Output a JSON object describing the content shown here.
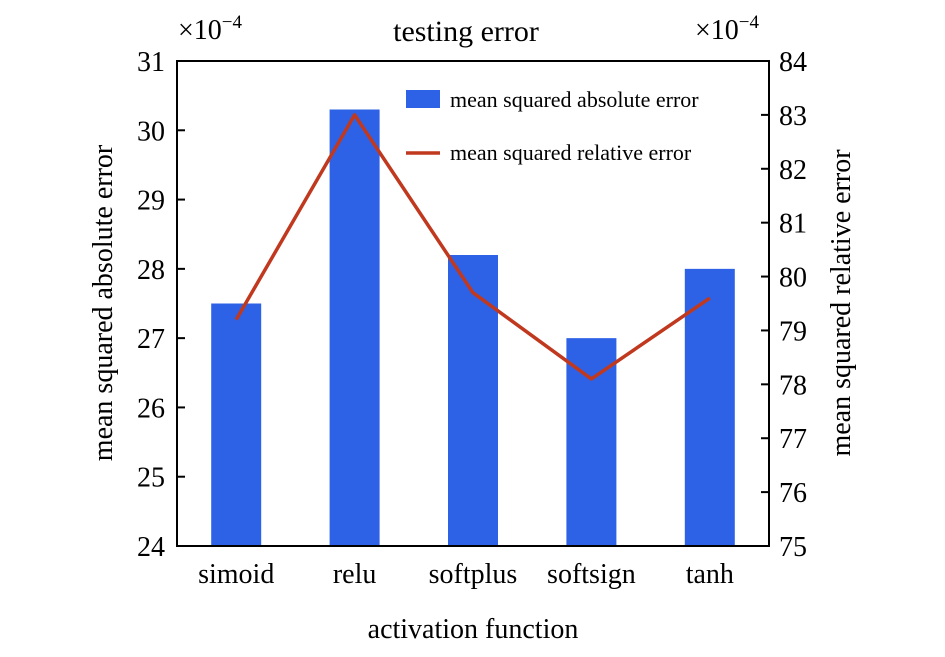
{
  "chart_data": {
    "type": "bar+line",
    "title": "testing error",
    "xlabel": "activation function",
    "ylabel_left": "mean squared absolute error",
    "ylabel_right": "mean squared relative error",
    "left_multiplier": "×10",
    "right_multiplier": "×10",
    "multiplier_exponent": "−4",
    "categories": [
      "simoid",
      "relu",
      "softplus",
      "softsign",
      "tanh"
    ],
    "ylim_left": [
      24,
      31
    ],
    "ylim_right": [
      75,
      84
    ],
    "yticks_left": [
      "24",
      "25",
      "26",
      "27",
      "28",
      "29",
      "30",
      "31"
    ],
    "yticks_right": [
      "75",
      "76",
      "77",
      "78",
      "79",
      "80",
      "81",
      "82",
      "83",
      "84"
    ],
    "series": [
      {
        "name": "mean squared absolute error",
        "type": "bar",
        "axis": "left",
        "color": "#2e62e6",
        "values": [
          27.5,
          30.3,
          28.2,
          27.0,
          28.0
        ]
      },
      {
        "name": "mean squared relative error",
        "type": "line",
        "axis": "right",
        "color": "#c0391e",
        "values": [
          79.2,
          83.0,
          79.7,
          78.1,
          79.6
        ]
      }
    ],
    "legend_position": "top-right",
    "grid": false
  }
}
